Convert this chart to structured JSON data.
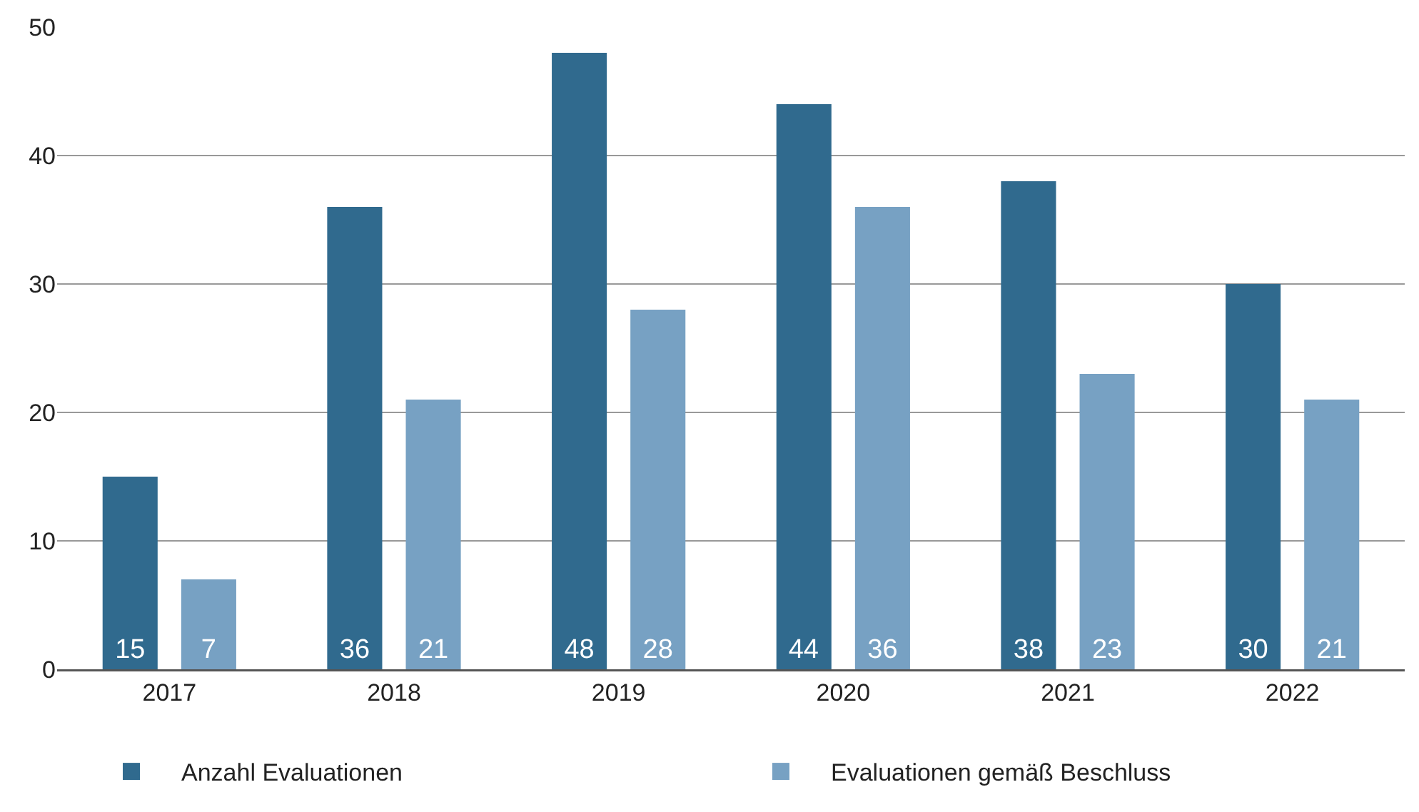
{
  "chart_data": {
    "type": "bar",
    "categories": [
      "2017",
      "2018",
      "2019",
      "2020",
      "2021",
      "2022"
    ],
    "series": [
      {
        "name": "Anzahl Evaluationen",
        "color": "#306a8e",
        "values": [
          15,
          36,
          48,
          44,
          38,
          30
        ],
        "value_labels": [
          "15",
          "36",
          "48",
          "44",
          "38",
          "30"
        ]
      },
      {
        "name": "Evaluationen gemäß Beschluss",
        "color": "#77a1c3",
        "values": [
          7,
          21,
          28,
          36,
          23,
          21
        ],
        "value_labels": [
          "7",
          "21",
          "28",
          "36",
          "23",
          "21"
        ]
      }
    ],
    "ylim": [
      0,
      50
    ],
    "yticks": [
      0,
      10,
      20,
      30,
      40,
      50
    ],
    "grid": "y",
    "legend": "bottom"
  }
}
